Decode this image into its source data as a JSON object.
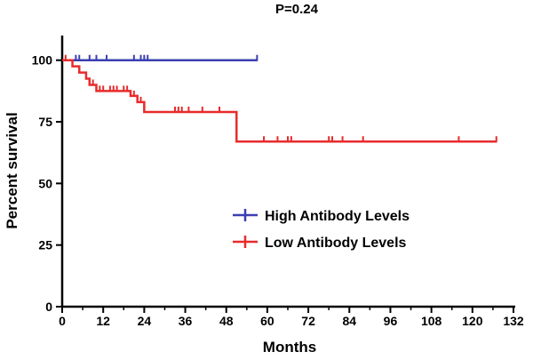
{
  "chart_data": {
    "type": "line",
    "subtype": "kaplan-meier",
    "title": "P=0.24",
    "xlabel": "Months",
    "ylabel": "Percent survival",
    "xlim": [
      0,
      132
    ],
    "ylim": [
      0,
      110
    ],
    "x_ticks": [
      "0",
      "12",
      "24",
      "36",
      "48",
      "60",
      "72",
      "84",
      "96",
      "108",
      "120",
      "132"
    ],
    "y_ticks": [
      "0",
      "25",
      "50",
      "75",
      "100"
    ],
    "legend_position": "center-right",
    "series": [
      {
        "name": "High Antibody Levels",
        "color": "#3b3fb1",
        "steps": [
          [
            0,
            100
          ],
          [
            57,
            100
          ]
        ],
        "censor_times": [
          4,
          5,
          8,
          10,
          13,
          21,
          23,
          24,
          25,
          57
        ]
      },
      {
        "name": "Low Antibody Levels",
        "color": "#e82b2b",
        "steps": [
          [
            0,
            100
          ],
          [
            3,
            97.5
          ],
          [
            5,
            95
          ],
          [
            7,
            92.5
          ],
          [
            8,
            90
          ],
          [
            10,
            87.5
          ],
          [
            20,
            85.5
          ],
          [
            22,
            83
          ],
          [
            24,
            79
          ],
          [
            50,
            79
          ],
          [
            51,
            67
          ],
          [
            127,
            67
          ]
        ],
        "censor_times": [
          1,
          8,
          9,
          11,
          12,
          14,
          15,
          16,
          18,
          19,
          21,
          23,
          33,
          34,
          35,
          37,
          41,
          46,
          59,
          63,
          66,
          67,
          78,
          79,
          82,
          88,
          116,
          127
        ]
      }
    ]
  }
}
